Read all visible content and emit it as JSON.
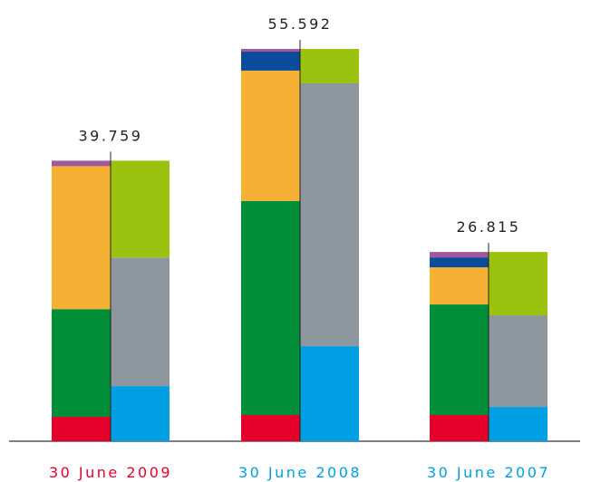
{
  "chart_data": {
    "type": "bar",
    "categories": [
      "30 June 2009",
      "30 June 2008",
      "30 June 2007"
    ],
    "category_colors": [
      "#e4002b",
      "#009fe3",
      "#009fe3"
    ],
    "totals": [
      39.759,
      55.592,
      26.815
    ],
    "series": [
      {
        "stack": "left",
        "color": "#e4002b",
        "values": [
          3.46,
          3.72,
          3.72
        ]
      },
      {
        "stack": "left",
        "color": "#008f39",
        "values": [
          15.26,
          30.33,
          15.66
        ]
      },
      {
        "stack": "left",
        "color": "#f6b134",
        "values": [
          20.26,
          18.47,
          5.26
        ]
      },
      {
        "stack": "left",
        "color": "#0a4b9b",
        "values": [
          null,
          2.69,
          1.41
        ]
      },
      {
        "stack": "left",
        "color": "#a3579c",
        "values": [
          0.77,
          0.38,
          0.77
        ]
      },
      {
        "stack": "right",
        "color": "#009fe3",
        "values": [
          7.82,
          13.47,
          4.87
        ]
      },
      {
        "stack": "right",
        "color": "#8e979d",
        "values": [
          18.21,
          37.25,
          12.97
        ]
      },
      {
        "stack": "right",
        "color": "#9bc20f",
        "values": [
          13.72,
          4.87,
          8.98
        ]
      }
    ]
  }
}
